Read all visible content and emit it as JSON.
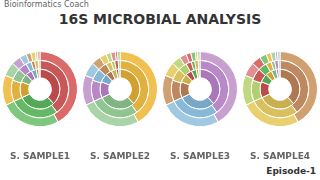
{
  "title": "16S MICROBIAL ANALYSIS",
  "annotations": [
    "Bioinformatics Coach",
    "Episode-1"
  ],
  "chart_data": [
    {
      "type": "doughnut",
      "title": "S. SAMPLE1",
      "series": [
        {
          "values": [
            0.42,
            0.26,
            0.13,
            0.06,
            0.04,
            0.03,
            0.02,
            0.02,
            0.01,
            0.01
          ],
          "colors": [
            "#d96b6b",
            "#7dc87d",
            "#f0c050",
            "#a8d4a8",
            "#c8a0d0",
            "#a0c8e0",
            "#d0a070",
            "#e8d070",
            "#c0d880",
            "#e09090"
          ]
        },
        {
          "values": [
            0.4,
            0.28,
            0.12,
            0.07,
            0.05,
            0.03,
            0.02,
            0.02,
            0.01
          ],
          "colors": [
            "#c85858",
            "#65b865",
            "#e0b040",
            "#90c490",
            "#b888c8",
            "#88b8d8",
            "#c08860",
            "#d8c060",
            "#b0d070"
          ]
        },
        {
          "values": [
            0.38,
            0.3,
            0.13,
            0.07,
            0.05,
            0.04,
            0.02,
            0.01
          ],
          "colors": [
            "#bb4a4a",
            "#55a855",
            "#d0a030",
            "#80b480",
            "#a878b8",
            "#78a8c8",
            "#b07850",
            "#c8b050"
          ]
        }
      ]
    },
    {
      "type": "doughnut",
      "title": "S. SAMPLE2",
      "series": [
        {
          "values": [
            0.42,
            0.26,
            0.13,
            0.06,
            0.04,
            0.03,
            0.02,
            0.02,
            0.01,
            0.01
          ],
          "colors": [
            "#f0c050",
            "#a8d4a8",
            "#c8a0d0",
            "#a0c8e0",
            "#d0a070",
            "#e8d070",
            "#c0d880",
            "#e09090",
            "#d96b6b",
            "#7dc87d"
          ]
        },
        {
          "values": [
            0.4,
            0.28,
            0.12,
            0.07,
            0.05,
            0.03,
            0.02,
            0.02,
            0.01
          ],
          "colors": [
            "#e0b040",
            "#90c490",
            "#b888c8",
            "#88b8d8",
            "#c08860",
            "#d8c060",
            "#b0d070",
            "#c85858",
            "#65b865"
          ]
        },
        {
          "values": [
            0.38,
            0.3,
            0.13,
            0.07,
            0.05,
            0.04,
            0.02,
            0.01
          ],
          "colors": [
            "#d0a030",
            "#80b480",
            "#a878b8",
            "#78a8c8",
            "#b07850",
            "#c8b050",
            "#bb4a4a",
            "#55a855"
          ]
        }
      ]
    },
    {
      "type": "doughnut",
      "title": "S. SAMPLE3",
      "series": [
        {
          "values": [
            0.42,
            0.26,
            0.13,
            0.06,
            0.04,
            0.03,
            0.02,
            0.02,
            0.01,
            0.01
          ],
          "colors": [
            "#c8a0d0",
            "#a0c8e0",
            "#d0a070",
            "#e8d070",
            "#c0d880",
            "#e09090",
            "#d96b6b",
            "#7dc87d",
            "#f0c050",
            "#a8d4a8"
          ]
        },
        {
          "values": [
            0.4,
            0.28,
            0.12,
            0.07,
            0.05,
            0.03,
            0.02,
            0.02,
            0.01
          ],
          "colors": [
            "#b888c8",
            "#88b8d8",
            "#c08860",
            "#d8c060",
            "#b0d070",
            "#c85858",
            "#65b865",
            "#e0b040",
            "#90c490"
          ]
        },
        {
          "values": [
            0.38,
            0.3,
            0.13,
            0.07,
            0.05,
            0.04,
            0.02,
            0.01
          ],
          "colors": [
            "#a878b8",
            "#78a8c8",
            "#b07850",
            "#c8b050",
            "#bb4a4a",
            "#55a855",
            "#d0a030",
            "#80b480"
          ]
        }
      ]
    },
    {
      "type": "doughnut",
      "title": "S. SAMPLE4",
      "series": [
        {
          "values": [
            0.42,
            0.26,
            0.13,
            0.06,
            0.04,
            0.03,
            0.02,
            0.02,
            0.01,
            0.01
          ],
          "colors": [
            "#d0a070",
            "#e8d070",
            "#c0d880",
            "#e09090",
            "#d96b6b",
            "#7dc87d",
            "#f0c050",
            "#a8d4a8",
            "#c8a0d0",
            "#a0c8e0"
          ]
        },
        {
          "values": [
            0.4,
            0.28,
            0.12,
            0.07,
            0.05,
            0.03,
            0.02,
            0.02,
            0.01
          ],
          "colors": [
            "#c08860",
            "#d8c060",
            "#b0d070",
            "#c85858",
            "#65b865",
            "#e0b040",
            "#90c490",
            "#b888c8",
            "#88b8d8"
          ]
        },
        {
          "values": [
            0.38,
            0.3,
            0.13,
            0.07,
            0.05,
            0.04,
            0.02,
            0.01
          ],
          "colors": [
            "#b07850",
            "#c8b050",
            "#bb4a4a",
            "#55a855",
            "#d0a030",
            "#80b480",
            "#a878b8",
            "#78a8c8"
          ]
        }
      ]
    }
  ]
}
